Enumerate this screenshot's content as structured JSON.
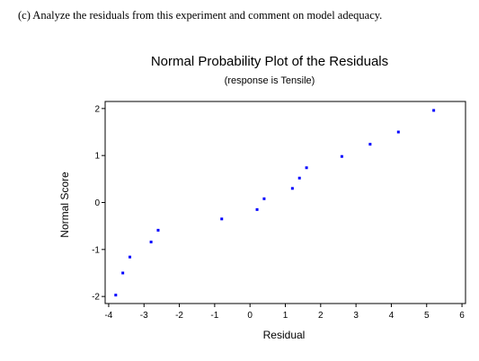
{
  "question": "(c) Analyze the residuals from this experiment and comment on model adequacy.",
  "chart_data": {
    "type": "scatter",
    "title": "Normal Probability Plot of the Residuals",
    "subtitle": "(response is Tensile)",
    "xlabel": "Residual",
    "ylabel": "Normal Score",
    "xlim": [
      -4.1,
      6.1
    ],
    "ylim": [
      -2.15,
      2.15
    ],
    "x_ticks": [
      -4,
      -3,
      -2,
      -1,
      0,
      1,
      2,
      3,
      4,
      5,
      6
    ],
    "y_ticks": [
      -2,
      -1,
      0,
      1,
      2
    ],
    "x_tick_labels": [
      "-4",
      "-3",
      "-2",
      "-1",
      "0",
      "1",
      "2",
      "3",
      "4",
      "5",
      "6"
    ],
    "y_tick_labels": [
      "-2",
      "-1",
      "0",
      "1",
      "2"
    ],
    "grid": false,
    "marker_color": "#0000ff",
    "points": [
      {
        "x": -3.8,
        "y": -1.97
      },
      {
        "x": -3.6,
        "y": -1.5
      },
      {
        "x": -3.4,
        "y": -1.16
      },
      {
        "x": -2.8,
        "y": -0.84
      },
      {
        "x": -2.6,
        "y": -0.59
      },
      {
        "x": -0.8,
        "y": -0.35
      },
      {
        "x": 0.2,
        "y": -0.15
      },
      {
        "x": 0.4,
        "y": 0.08
      },
      {
        "x": 1.2,
        "y": 0.3
      },
      {
        "x": 1.4,
        "y": 0.52
      },
      {
        "x": 1.6,
        "y": 0.74
      },
      {
        "x": 2.6,
        "y": 0.98
      },
      {
        "x": 3.4,
        "y": 1.24
      },
      {
        "x": 4.2,
        "y": 1.5
      },
      {
        "x": 5.2,
        "y": 1.96
      }
    ]
  }
}
